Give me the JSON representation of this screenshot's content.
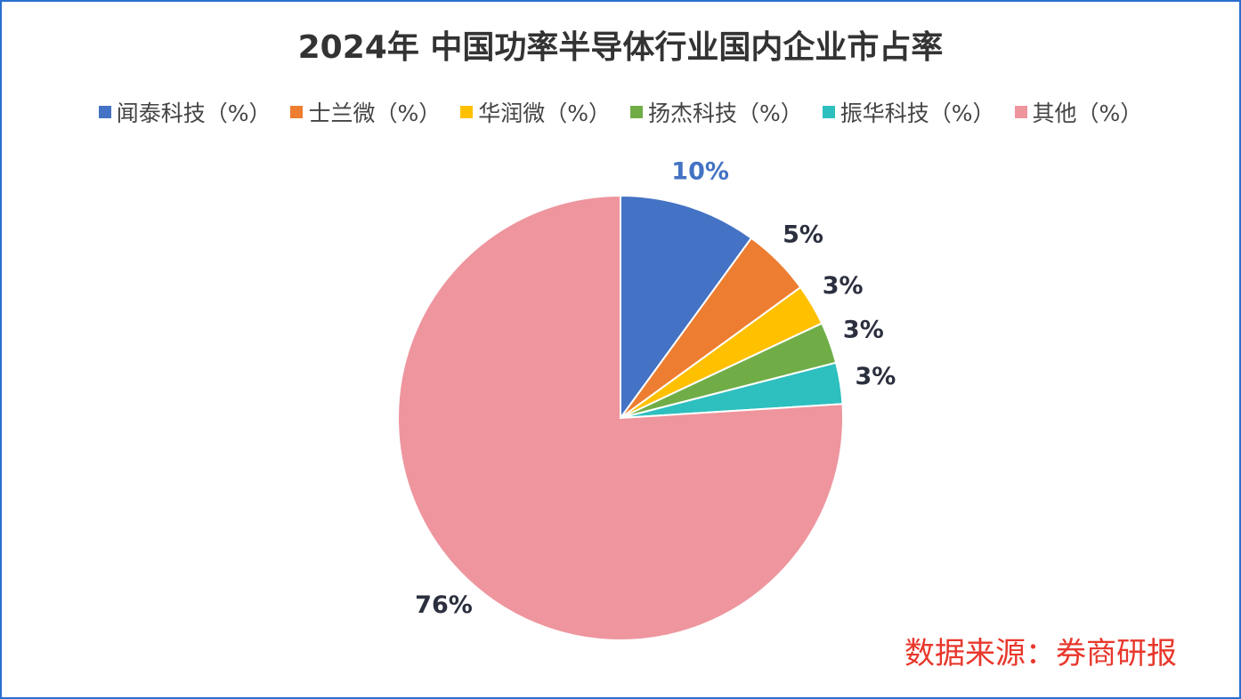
{
  "chart_data": {
    "type": "pie",
    "title": "2024年 中国功率半导体行业国内企业市占率",
    "categories": [
      "闻泰科技（%）",
      "士兰微（%）",
      "华润微（%）",
      "扬杰科技（%）",
      "振华科技（%）",
      "其他（%）"
    ],
    "values": [
      10,
      5,
      3,
      3,
      3,
      76
    ],
    "value_labels": [
      "10%",
      "5%",
      "3%",
      "3%",
      "3%",
      "76%"
    ],
    "colors": [
      "#4472c4",
      "#ed7d31",
      "#ffc000",
      "#70ad47",
      "#2ebfbf",
      "#ee959e"
    ],
    "value_label_colors": [
      "#4472c4",
      "#2b2f3e",
      "#2b2f3e",
      "#2b2f3e",
      "#2b2f3e",
      "#2b2f3e"
    ],
    "legend": "top",
    "source": "数据来源：券商研报"
  }
}
